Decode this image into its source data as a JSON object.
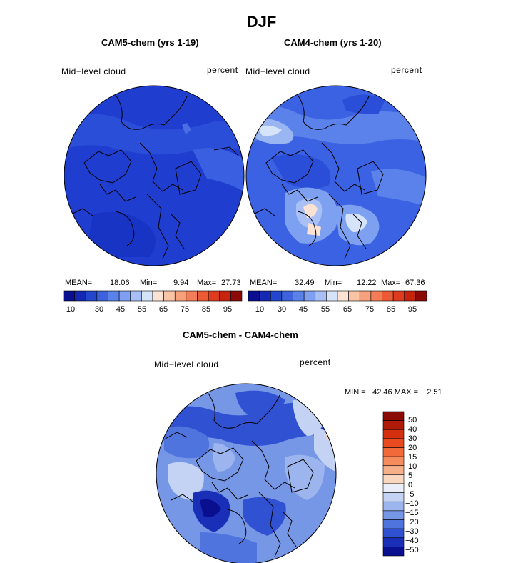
{
  "figure": {
    "title": "DJF",
    "panels": [
      {
        "subtitle": "CAM5-chem (yrs 1-19)",
        "field_label": "Mid−level cloud",
        "units": "percent",
        "mean_label": "MEAN=",
        "mean": "18.06",
        "min_label": "Min=",
        "min": "9.94",
        "max_label": "Max=",
        "max": "27.73"
      },
      {
        "subtitle": "CAM4-chem (yrs 1-20)",
        "field_label": "Mid−level cloud",
        "units": "percent",
        "mean_label": "MEAN=",
        "mean": "32.49",
        "min_label": "Min=",
        "min": "12.22",
        "max_label": "Max=",
        "max": "67.36"
      },
      {
        "subtitle": "CAM5-chem - CAM4-chem",
        "field_label": "Mid−level cloud",
        "units": "percent",
        "minmax_text": "MIN = −42.46 MAX =    2.51"
      }
    ]
  },
  "chart_data": [
    {
      "type": "heatmap",
      "projection": "north-polar-stereographic",
      "title": "CAM5-chem (yrs 1-19)",
      "variable": "Mid-level cloud",
      "units": "percent",
      "stats": {
        "mean": 18.06,
        "min": 9.94,
        "max": 27.73
      },
      "colorbar": {
        "orientation": "horizontal",
        "levels": [
          10,
          30,
          45,
          55,
          65,
          75,
          85,
          95
        ],
        "tick_labels": [
          "10",
          "30",
          "45",
          "55",
          "65",
          "75",
          "85",
          "95"
        ],
        "colors": [
          "#0a0f8f",
          "#1428b4",
          "#2346cc",
          "#3c63dc",
          "#5a82e8",
          "#7fa0f0",
          "#a8c0f5",
          "#d6e4fa",
          "#fbe2d2",
          "#f9c3a5",
          "#f6a07c",
          "#f27d58",
          "#ec5a36",
          "#df3b1f",
          "#c8230f",
          "#8a0a05"
        ]
      },
      "dominant_range": [
        10,
        30
      ]
    },
    {
      "type": "heatmap",
      "projection": "north-polar-stereographic",
      "title": "CAM4-chem (yrs 1-20)",
      "variable": "Mid-level cloud",
      "units": "percent",
      "stats": {
        "mean": 32.49,
        "min": 12.22,
        "max": 67.36
      },
      "colorbar": {
        "orientation": "horizontal",
        "levels": [
          10,
          30,
          45,
          55,
          65,
          75,
          85,
          95
        ],
        "tick_labels": [
          "10",
          "30",
          "45",
          "55",
          "65",
          "75",
          "85",
          "95"
        ],
        "colors": [
          "#0a0f8f",
          "#1428b4",
          "#2346cc",
          "#3c63dc",
          "#5a82e8",
          "#7fa0f0",
          "#a8c0f5",
          "#d6e4fa",
          "#fbe2d2",
          "#f9c3a5",
          "#f6a07c",
          "#f27d58",
          "#ec5a36",
          "#df3b1f",
          "#c8230f",
          "#8a0a05"
        ]
      },
      "dominant_range": [
        25,
        45
      ]
    },
    {
      "type": "heatmap",
      "projection": "north-polar-stereographic",
      "title": "CAM5-chem - CAM4-chem",
      "variable": "Mid-level cloud",
      "units": "percent",
      "stats": {
        "min": -42.46,
        "max": 2.51
      },
      "colorbar": {
        "orientation": "vertical",
        "tick_labels": [
          "50",
          "40",
          "30",
          "20",
          "15",
          "10",
          "5",
          "0",
          "−5",
          "−10",
          "−15",
          "−20",
          "−30",
          "−40",
          "−50"
        ],
        "colors": [
          "#8a0a05",
          "#b01a08",
          "#d4300f",
          "#ea4a1f",
          "#f26a3a",
          "#f48c5e",
          "#f6b08a",
          "#f9d6c0",
          "#e9eef9",
          "#c4d3f4",
          "#9db5ee",
          "#7696e6",
          "#4f74dd",
          "#3051d2",
          "#1a2fb8",
          "#0a0f8f"
        ]
      },
      "dominant_range": [
        -20,
        -5
      ]
    }
  ]
}
